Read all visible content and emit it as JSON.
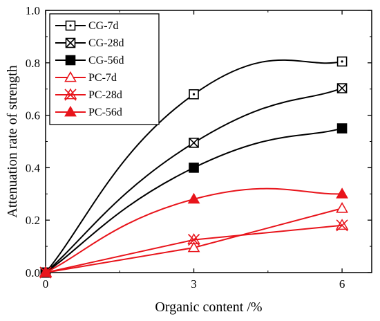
{
  "chart_data": {
    "type": "line",
    "xlabel": "Organic content /%",
    "ylabel": "Attenuation rate of strength",
    "xlim": [
      0,
      6.6
    ],
    "ylim": [
      0.0,
      1.0
    ],
    "x_ticks": [
      0,
      3,
      6
    ],
    "x_tick_labels": [
      "0",
      "3",
      "6"
    ],
    "y_ticks": [
      0.0,
      0.2,
      0.4,
      0.6,
      0.8,
      1.0
    ],
    "y_tick_labels": [
      "0.0",
      "0.2",
      "0.4",
      "0.6",
      "0.8",
      "1.0"
    ],
    "grid": false,
    "legend_position": "top-left",
    "series": [
      {
        "name": "CG-7d",
        "x": [
          0,
          3,
          6
        ],
        "values": [
          0.0,
          0.68,
          0.805
        ],
        "color": "#000000",
        "marker": "square-dot",
        "curve": "smooth"
      },
      {
        "name": "CG-28d",
        "x": [
          0,
          3,
          6
        ],
        "values": [
          0.0,
          0.495,
          0.703
        ],
        "color": "#000000",
        "marker": "square-x",
        "curve": "smooth"
      },
      {
        "name": "CG-56d",
        "x": [
          0,
          3,
          6
        ],
        "values": [
          0.0,
          0.4,
          0.55
        ],
        "color": "#000000",
        "marker": "square-filled",
        "curve": "smooth"
      },
      {
        "name": "PC-7d",
        "x": [
          0,
          3,
          6
        ],
        "values": [
          0.0,
          0.095,
          0.245
        ],
        "color": "#e8141b",
        "marker": "triangle-open",
        "curve": "linear"
      },
      {
        "name": "PC-28d",
        "x": [
          0,
          3,
          6
        ],
        "values": [
          0.0,
          0.125,
          0.18
        ],
        "color": "#e8141b",
        "marker": "x-triangle",
        "curve": "linear"
      },
      {
        "name": "PC-56d",
        "x": [
          0,
          3,
          6
        ],
        "values": [
          0.0,
          0.28,
          0.3
        ],
        "color": "#e8141b",
        "marker": "triangle-filled",
        "curve": "smooth"
      }
    ]
  }
}
